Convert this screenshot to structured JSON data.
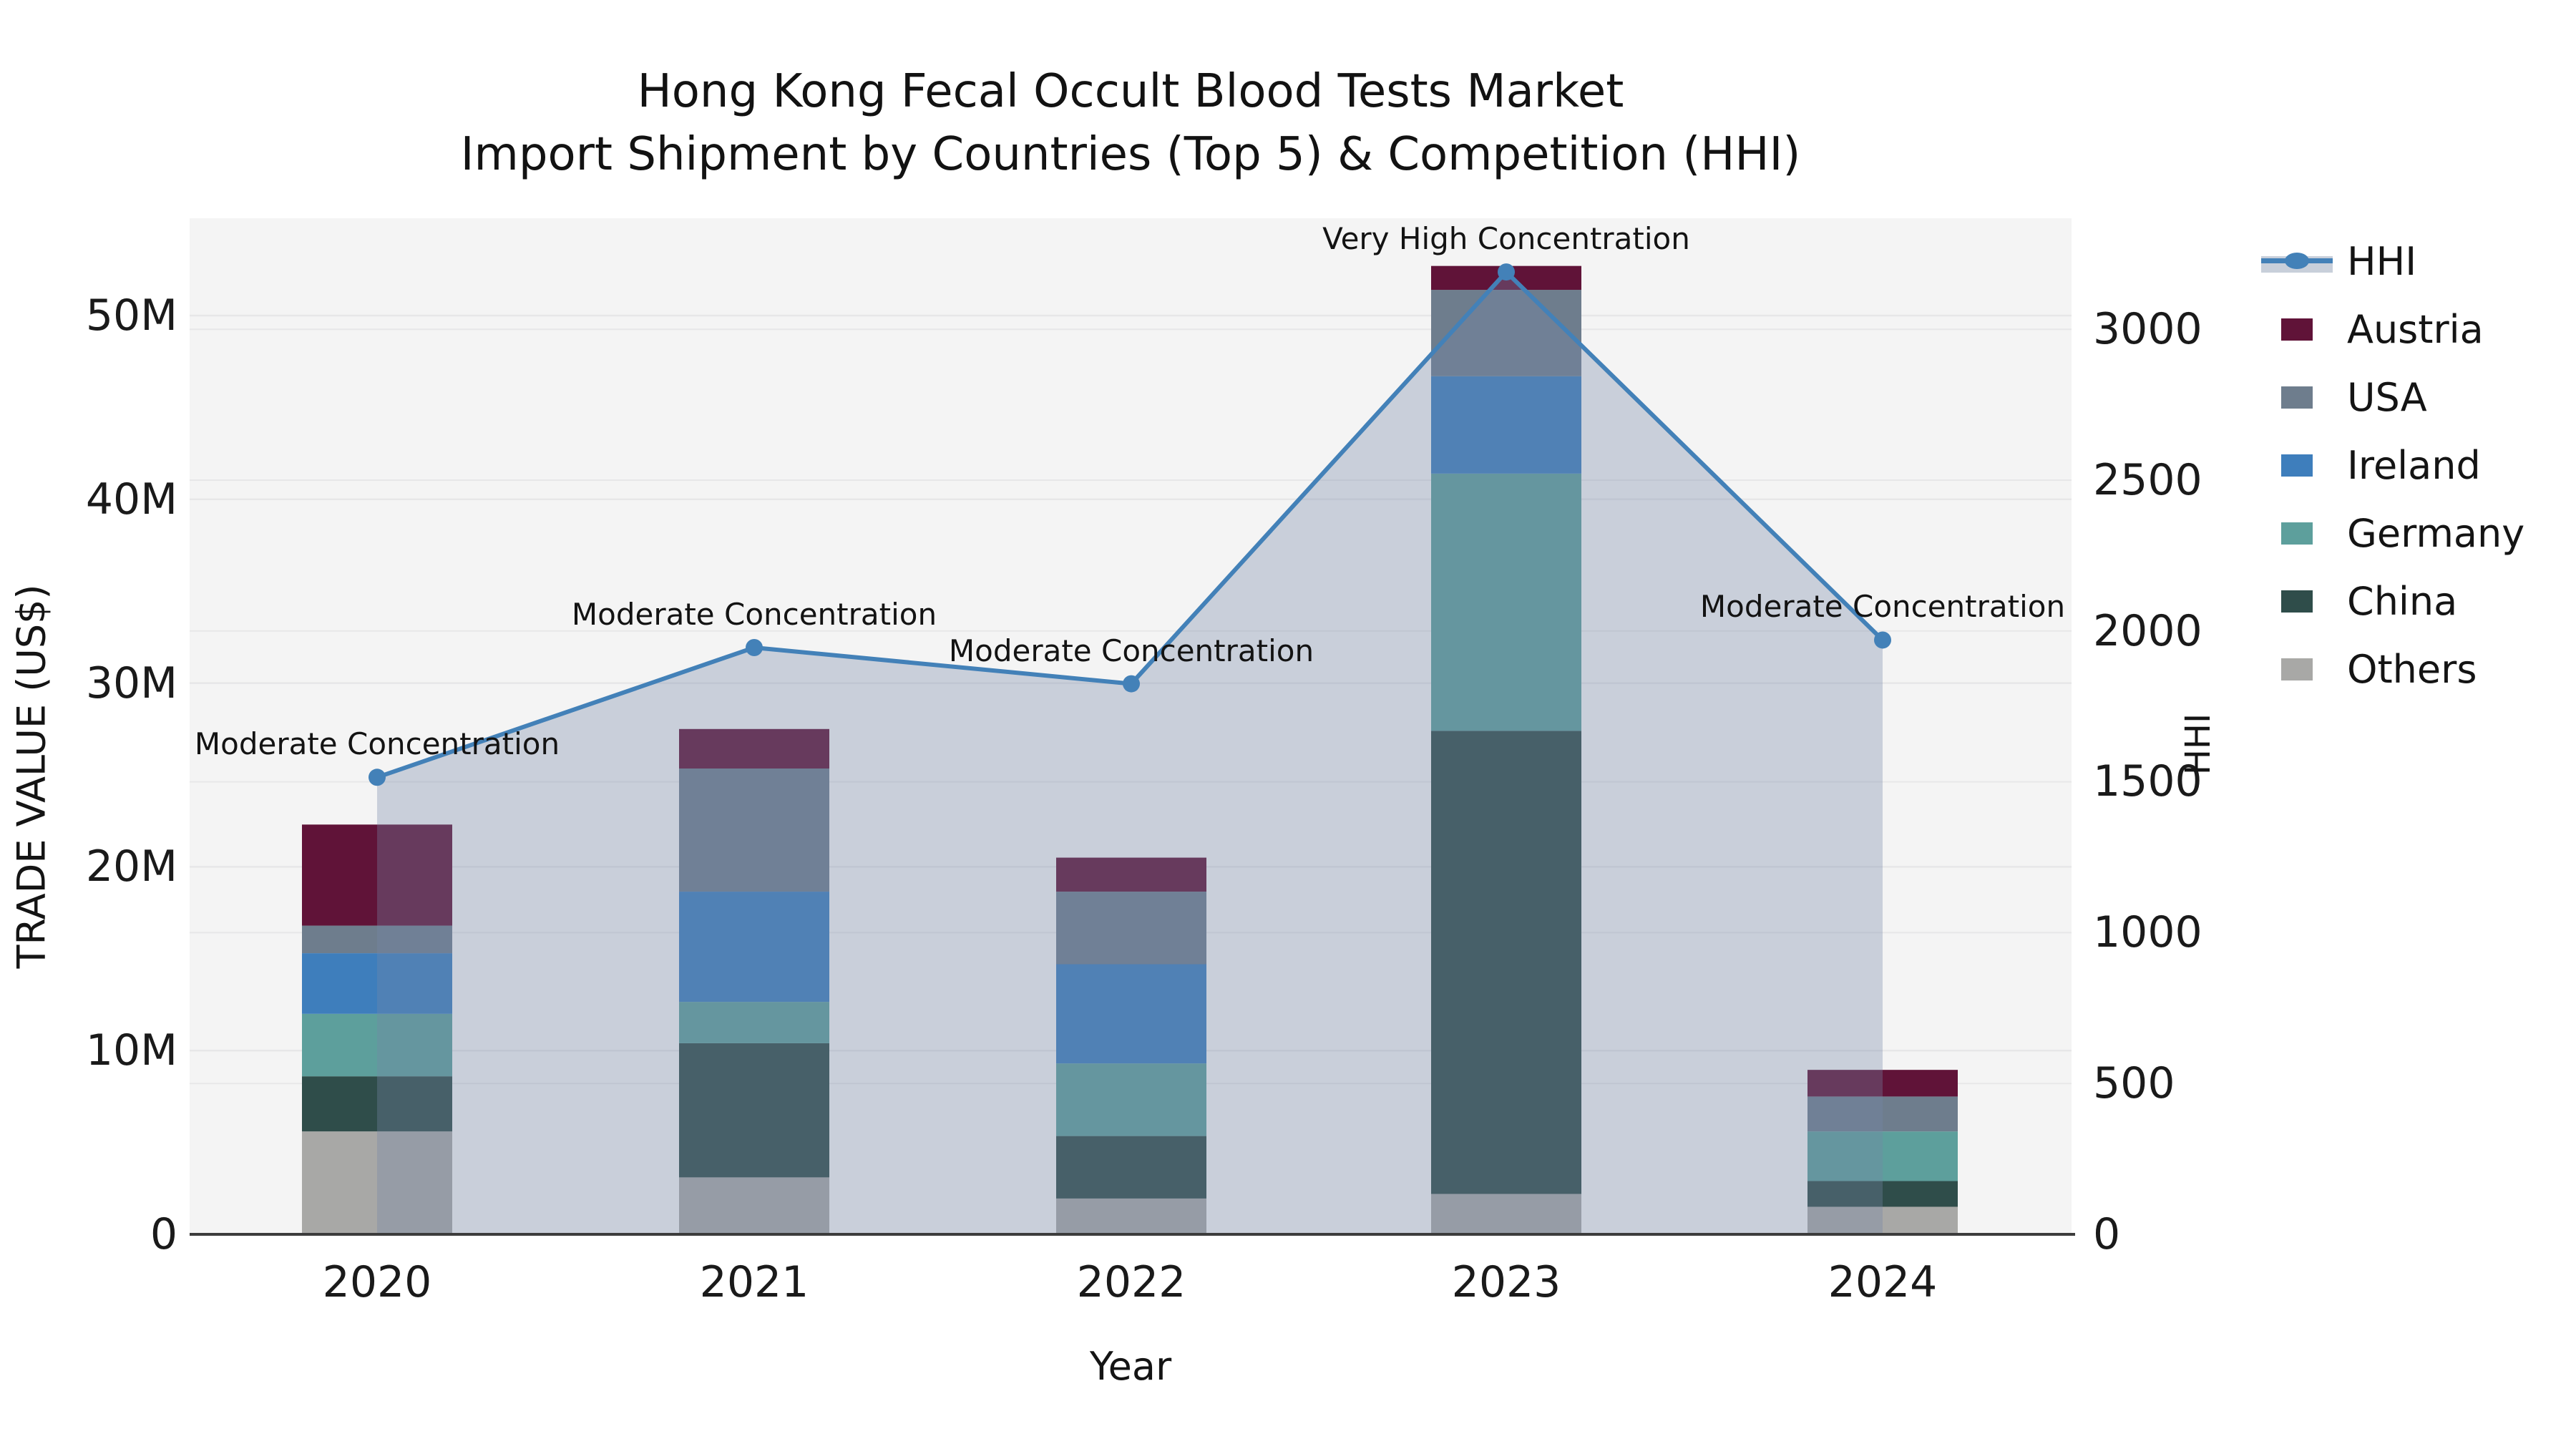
{
  "title": {
    "line1": "Hong Kong Fecal Occult Blood Tests Market",
    "line2": "Import Shipment by Countries (Top 5) & Competition (HHI)"
  },
  "axes": {
    "y_left": {
      "label": "TRADE VALUE (US$)",
      "ticks": [
        "0",
        "10M",
        "20M",
        "30M",
        "40M",
        "50M"
      ]
    },
    "y_right": {
      "label": "HHI",
      "ticks": [
        "0",
        "500",
        "1000",
        "1500",
        "2000",
        "2500",
        "3000"
      ]
    },
    "x": {
      "label": "Year"
    }
  },
  "legend": {
    "items": [
      {
        "label": "HHI"
      },
      {
        "label": "Austria"
      },
      {
        "label": "USA"
      },
      {
        "label": "Ireland"
      },
      {
        "label": "Germany"
      },
      {
        "label": "China"
      },
      {
        "label": "Others"
      }
    ]
  },
  "chart_data": {
    "type": "bar",
    "subtype": "stacked-bar-with-line",
    "categories": [
      "2020",
      "2021",
      "2022",
      "2023",
      "2024"
    ],
    "unit_left": "US$ millions",
    "unit_right": "HHI index",
    "ylim_left": [
      0,
      55.3
    ],
    "ylim_right": [
      0,
      3368
    ],
    "grid": true,
    "legend_position": "right",
    "series": [
      {
        "name": "Others",
        "color": "#a8a8a6",
        "values": [
          5.6,
          3.1,
          1.95,
          2.2,
          1.5
        ]
      },
      {
        "name": "China",
        "color": "#2f4d4a",
        "values": [
          3.0,
          7.3,
          3.4,
          25.2,
          1.4
        ]
      },
      {
        "name": "Germany",
        "color": "#5d9f9c",
        "values": [
          3.4,
          2.25,
          3.95,
          14.0,
          2.7
        ]
      },
      {
        "name": "Ireland",
        "color": "#3e7ebc",
        "values": [
          3.3,
          6.0,
          5.4,
          5.3,
          0
        ]
      },
      {
        "name": "USA",
        "color": "#6e7d8d",
        "values": [
          1.5,
          6.7,
          3.95,
          4.7,
          1.9
        ]
      },
      {
        "name": "Austria",
        "color": "#601338",
        "values": [
          5.5,
          2.15,
          1.85,
          1.3,
          1.45
        ]
      }
    ],
    "bar_totals": [
      22.3,
      27.5,
      20.5,
      52.7,
      8.95
    ],
    "hhi_line": {
      "name": "HHI",
      "color": "#4381b8",
      "area_fill_color": "#7587a7",
      "area_fill_opacity": 0.34,
      "values": [
        1515,
        1945,
        1825,
        3190,
        1970
      ]
    },
    "annotations": [
      {
        "year": "2020",
        "text": "Moderate Concentration"
      },
      {
        "year": "2021",
        "text": "Moderate Concentration"
      },
      {
        "year": "2022",
        "text": "Moderate Concentration"
      },
      {
        "year": "2023",
        "text": "Very High Concentration"
      },
      {
        "year": "2024",
        "text": "Moderate Concentration"
      }
    ],
    "colors": {
      "plot_background": "#f4f4f4",
      "gridline": "#e7e7e8",
      "axis_line": "#3c3c3c",
      "text": "#111111"
    }
  }
}
